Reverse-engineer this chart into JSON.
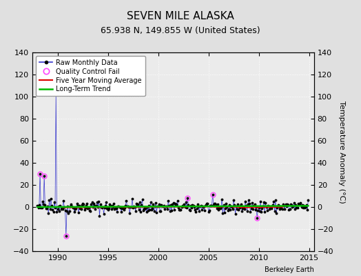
{
  "title": "SEVEN MILE ALASKA",
  "subtitle": "65.938 N, 149.855 W (United States)",
  "ylabel_right": "Temperature Anomaly (°C)",
  "attribution": "Berkeley Earth",
  "xlim": [
    1987.5,
    2015.5
  ],
  "ylim": [
    -40,
    140
  ],
  "yticks": [
    -40,
    -20,
    0,
    20,
    40,
    60,
    80,
    100,
    120,
    140
  ],
  "xticks": [
    1990,
    1995,
    2000,
    2005,
    2010,
    2015
  ],
  "bg_color": "#e0e0e0",
  "plot_bg_color": "#ebebeb",
  "line_color": "#3333cc",
  "dot_color": "#000000",
  "ma_color": "#dd0000",
  "trend_color": "#00bb00",
  "qc_color": "#ff44ff",
  "seed": 42,
  "n_months": 324,
  "start_year": 1988.0,
  "title_fontsize": 11,
  "subtitle_fontsize": 9,
  "tick_fontsize": 8,
  "label_fontsize": 8
}
